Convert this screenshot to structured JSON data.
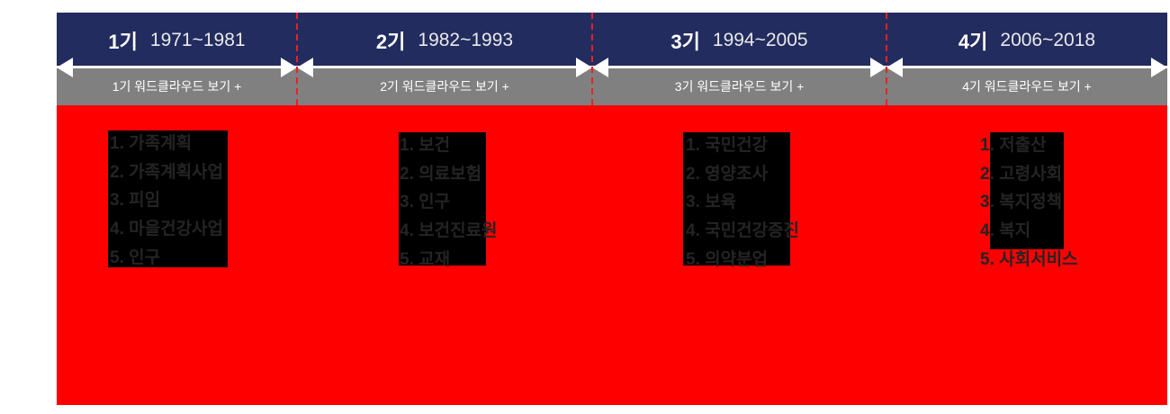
{
  "timeline": {
    "periods": [
      {
        "era": "1기",
        "years": "1971~1981",
        "button": "1기 워드클라우드 보기 +",
        "keywords": [
          "1. 가족계획",
          "2. 가족계획사업",
          "3. 피임",
          "4. 마을건강사업",
          "5. 인구"
        ]
      },
      {
        "era": "2기",
        "years": "1982~1993",
        "button": "2기 워드클라우드 보기 +",
        "keywords": [
          "1. 보건",
          "2. 의료보험",
          "3. 인구",
          "4. 보건진료원",
          "5. 교재"
        ]
      },
      {
        "era": "3기",
        "years": "1994~2005",
        "button": "3기 워드클라우드 보기 +",
        "keywords": [
          "1. 국민건강",
          "2. 영양조사",
          "3. 보육",
          "4. 국민건강증진",
          "5. 의약분업"
        ]
      },
      {
        "era": "4기",
        "years": "2006~2018",
        "button": "4기 워드클라우드 보기 +",
        "keywords": [
          "1. 저출산",
          "2. 고령사회",
          "3. 복지정책",
          "4. 복지",
          "5. 사회서비스"
        ]
      }
    ],
    "colors": {
      "header_navy": "#232c5f",
      "button_gray": "#808080",
      "body_red": "#fe0000",
      "separator_red": "#ee1e24",
      "keyword_box_black": "#000000",
      "keyword_text": "#242424",
      "arrow_white": "#ffffff"
    }
  }
}
